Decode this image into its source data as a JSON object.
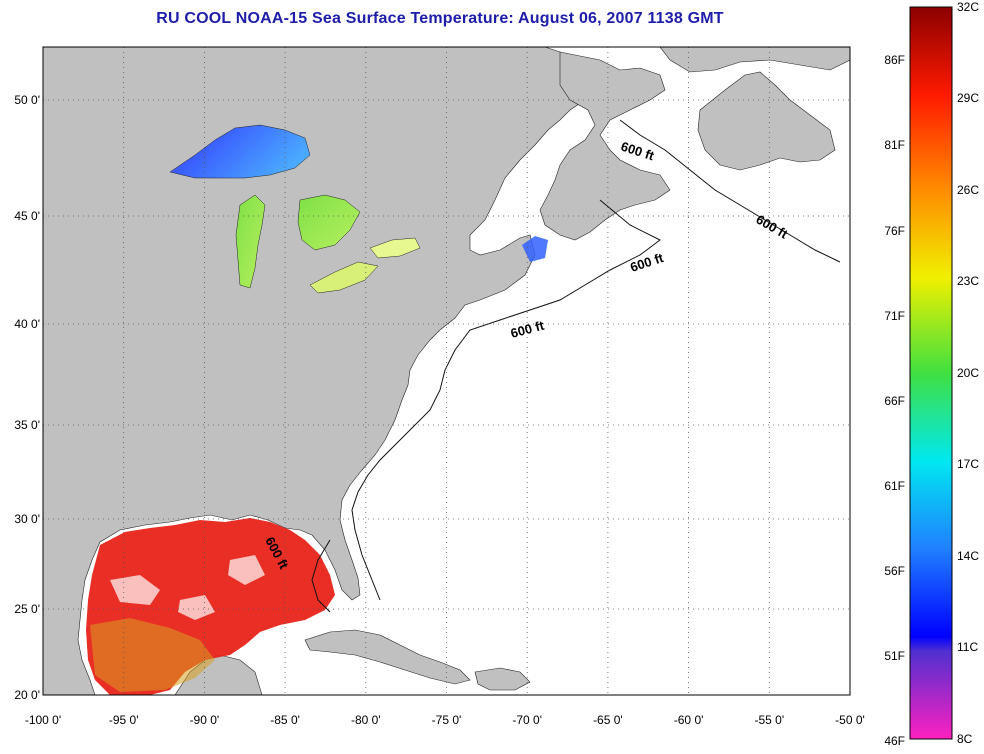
{
  "title": "RU COOL  NOAA-15  Sea Surface Temperature:  August 06, 2007 1138 GMT",
  "x_ticks": [
    "-100 0'",
    "-95 0'",
    "-90 0'",
    "-85 0'",
    "-80 0'",
    "-75 0'",
    "-70 0'",
    "-65 0'",
    "-60 0'",
    "-55 0'",
    "-50 0'"
  ],
  "y_ticks": [
    "50 0'",
    "45 0'",
    "40 0'",
    "35 0'",
    "30 0'",
    "25 0'",
    "20 0'"
  ],
  "isobath_label": "600 ft",
  "colorbar": {
    "fahrenheit": [
      "86F",
      "81F",
      "76F",
      "71F",
      "66F",
      "61F",
      "56F",
      "51F",
      "46F"
    ],
    "celsius": [
      "32C",
      "29C",
      "26C",
      "23C",
      "20C",
      "17C",
      "14C",
      "11C",
      "8C"
    ]
  },
  "colors": {
    "title": "#1d1daa",
    "land": "#c0c0c0",
    "ocean": "#ffffff",
    "gulf_sst": "#e8231a"
  }
}
